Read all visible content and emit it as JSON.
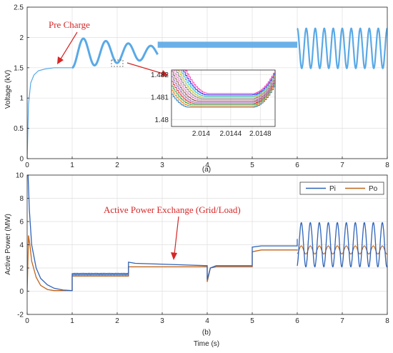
{
  "chart_data": [
    {
      "type": "line",
      "panel_label": "(a)",
      "xlabel": "",
      "ylabel": "Voltage (kV)",
      "xlim": [
        0,
        8
      ],
      "ylim": [
        0,
        2.5
      ],
      "xticks": [
        "0",
        "1",
        "2",
        "3",
        "4",
        "5",
        "6",
        "7",
        "8"
      ],
      "yticks": [
        "0",
        "0.5",
        "1",
        "1.5",
        "2",
        "2.5"
      ],
      "grid": true,
      "colors": {
        "main": "#5aa9e6",
        "arrow": "#d62728"
      },
      "annotation": {
        "text": "Pre Charge",
        "points_to": [
          0.8,
          1.5
        ]
      },
      "series": [
        {
          "x": [
            0,
            0.03,
            0.08,
            0.15,
            0.25,
            0.4,
            0.6,
            0.8,
            1.0
          ],
          "y": [
            0,
            0.9,
            1.25,
            1.38,
            1.45,
            1.48,
            1.5,
            1.5,
            1.5
          ]
        }
      ],
      "segments": [
        {
          "type": "damped_osc",
          "x_start": 1.0,
          "x_end": 2.9,
          "center": 1.75,
          "amp_start": 0.25,
          "amp_end": 0.1,
          "period": 0.5
        },
        {
          "type": "band",
          "x_start": 2.9,
          "x_end": 6.0,
          "center": 1.88,
          "amp": 0.05
        },
        {
          "type": "osc",
          "x_start": 6.0,
          "x_end": 8.0,
          "center": 1.82,
          "amp": 0.33,
          "period": 0.2
        }
      ],
      "inset": {
        "xlim": [
          2.0136,
          2.015
        ],
        "ylim": [
          1.4797,
          1.4822
        ],
        "xticks": [
          "2.014",
          "2.0144",
          "2.0148"
        ],
        "yticks": [
          "1.48",
          "1.481",
          "1.482"
        ],
        "curve_count": 12
      }
    },
    {
      "type": "line",
      "panel_label": "(b)",
      "xlabel": "Time (s)",
      "ylabel": "Active Power (MW)",
      "xlim": [
        0,
        8
      ],
      "ylim": [
        -2,
        10
      ],
      "xticks": [
        "0",
        "1",
        "2",
        "3",
        "4",
        "5",
        "6",
        "7",
        "8"
      ],
      "yticks": [
        "-2",
        "0",
        "2",
        "4",
        "6",
        "8",
        "10"
      ],
      "grid": true,
      "legend_position": "top-right",
      "annotation": {
        "text": "Active Power Exchange (Grid/Load)",
        "points_to": [
          3.3,
          2.3
        ]
      },
      "series": [
        {
          "name": "Pi",
          "color": "#2f63b8",
          "x": [
            0.02,
            0.05,
            0.1,
            0.2,
            0.3,
            0.45,
            0.6,
            0.8,
            1.0,
            1.0,
            2.25,
            2.25,
            2.4,
            4.0,
            4.0,
            4.07,
            4.2,
            5.0,
            5.0,
            5.2,
            6.0,
            6.0
          ],
          "y": [
            10,
            7.0,
            4.0,
            2.0,
            1.1,
            0.55,
            0.25,
            0.1,
            0.05,
            1.5,
            1.5,
            2.5,
            2.4,
            2.2,
            1.0,
            2.0,
            2.2,
            2.2,
            3.8,
            3.9,
            3.9,
            4.5
          ]
        },
        {
          "name": "Po",
          "color": "#c0651a",
          "x": [
            0,
            0.03,
            0.06,
            0.1,
            0.2,
            0.3,
            0.45,
            0.6,
            1.0,
            1.0,
            2.25,
            2.25,
            2.4,
            4.0,
            4.0,
            4.07,
            4.2,
            5.0,
            5.0,
            5.2,
            6.0,
            6.0
          ],
          "y": [
            0,
            4.8,
            4.0,
            2.6,
            1.2,
            0.5,
            0.15,
            0.05,
            0.05,
            1.3,
            1.3,
            2.1,
            2.1,
            2.1,
            0.8,
            2.0,
            2.1,
            2.1,
            3.4,
            3.55,
            3.55,
            3.5
          ]
        }
      ],
      "oscillations": [
        {
          "series": "Pi",
          "x_start": 6.0,
          "x_end": 8.0,
          "center": 4.0,
          "amp": 1.9,
          "period": 0.2
        },
        {
          "series": "Po",
          "x_start": 6.0,
          "x_end": 8.0,
          "center": 3.55,
          "amp": 0.35,
          "period": 0.2
        }
      ]
    }
  ]
}
